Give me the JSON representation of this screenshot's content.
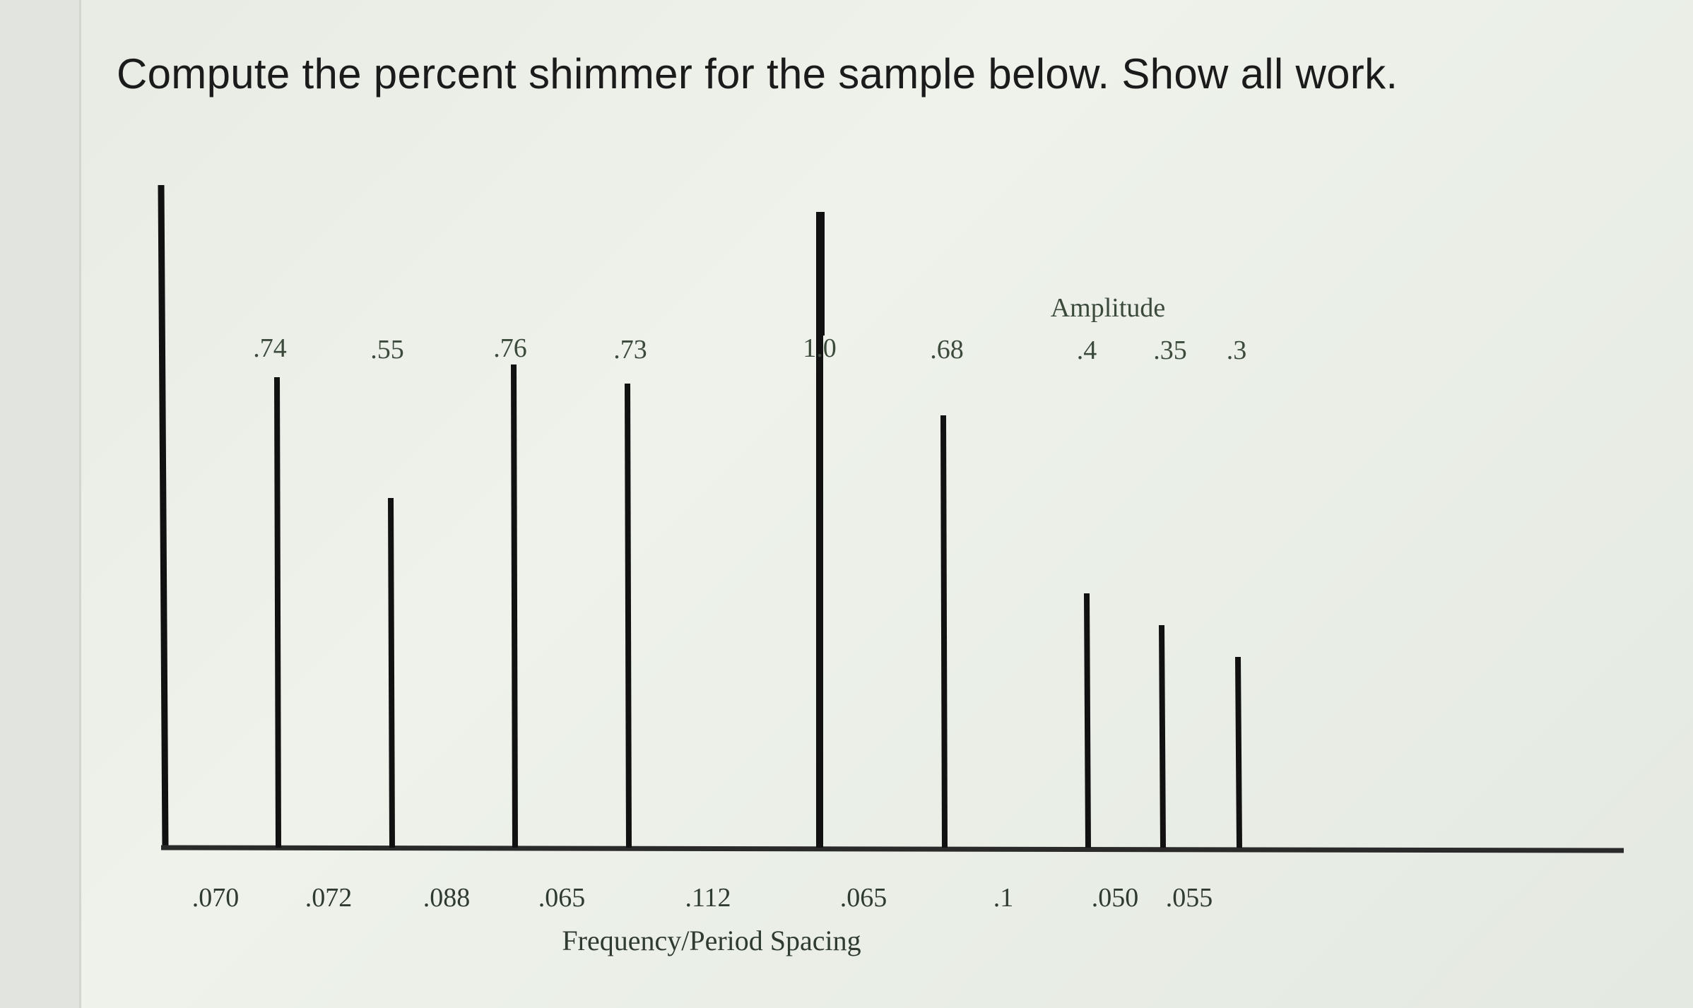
{
  "question": "Compute the percent shimmer for the sample below. Show all work.",
  "colors": {
    "bars": "#111111",
    "label_text": "#3c4a3c",
    "background": "#e9ede6"
  },
  "chart_data": {
    "type": "bar",
    "title": "",
    "amplitude_label": "Amplitude",
    "xlabel": "Frequency/Period Spacing",
    "ylabel": "",
    "ylim": [
      0,
      1.0
    ],
    "amplitude_labels": [
      ".74",
      ".55",
      ".76",
      ".73",
      "1.0",
      ".68",
      ".4",
      ".35",
      ".3"
    ],
    "amplitudes": [
      0.74,
      0.55,
      0.76,
      0.73,
      1.0,
      0.68,
      0.4,
      0.35,
      0.3
    ],
    "spacing_labels": [
      ".070",
      ".072",
      ".088",
      ".065",
      ".112",
      ".065",
      ".1",
      ".050",
      ".055"
    ],
    "spacings": [
      0.07,
      0.072,
      0.088,
      0.065,
      0.112,
      0.065,
      0.1,
      0.05,
      0.055
    ],
    "reference_bar": "first vertical line at left edge (axis)",
    "grid": false
  }
}
